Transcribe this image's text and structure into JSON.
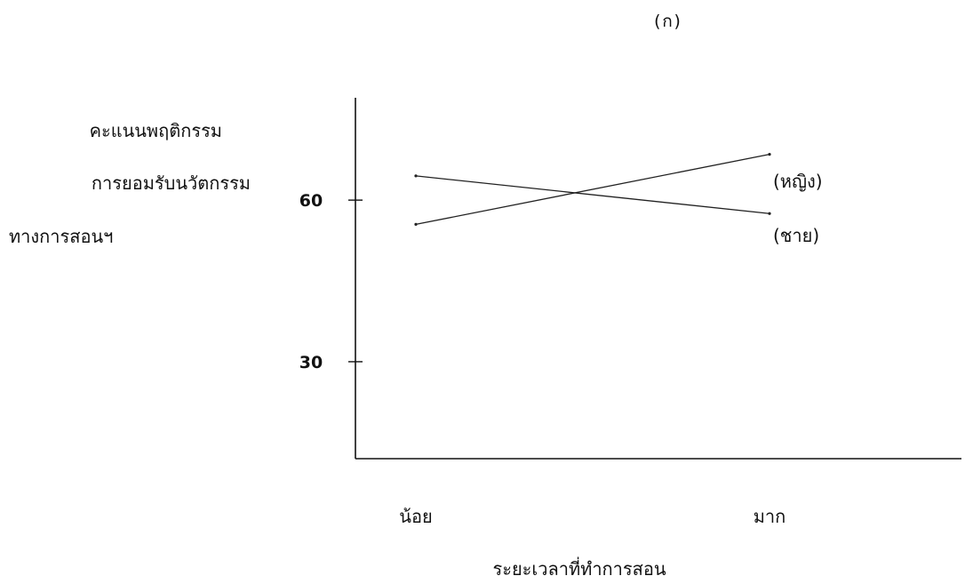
{
  "chart_data": {
    "type": "line",
    "panel_label": "(ก)",
    "ylabel_lines": [
      "คะแนนพฤติกรรม",
      "การยอมรับนวัตกรรม",
      "ทางการสอนฯ"
    ],
    "xlabel": "ระยะเวลาที่ทำการสอน",
    "categories": [
      "น้อย",
      "มาก"
    ],
    "y_ticks": [
      30,
      60
    ],
    "ylim": [
      12,
      79
    ],
    "series": [
      {
        "name": "(หญิง)",
        "values": [
          64.5,
          57.5
        ]
      },
      {
        "name": "(ชาย)",
        "values": [
          55.5,
          68.5
        ]
      }
    ],
    "colors": {
      "axis": "#111111",
      "line": "#222222",
      "text": "#111111"
    }
  }
}
